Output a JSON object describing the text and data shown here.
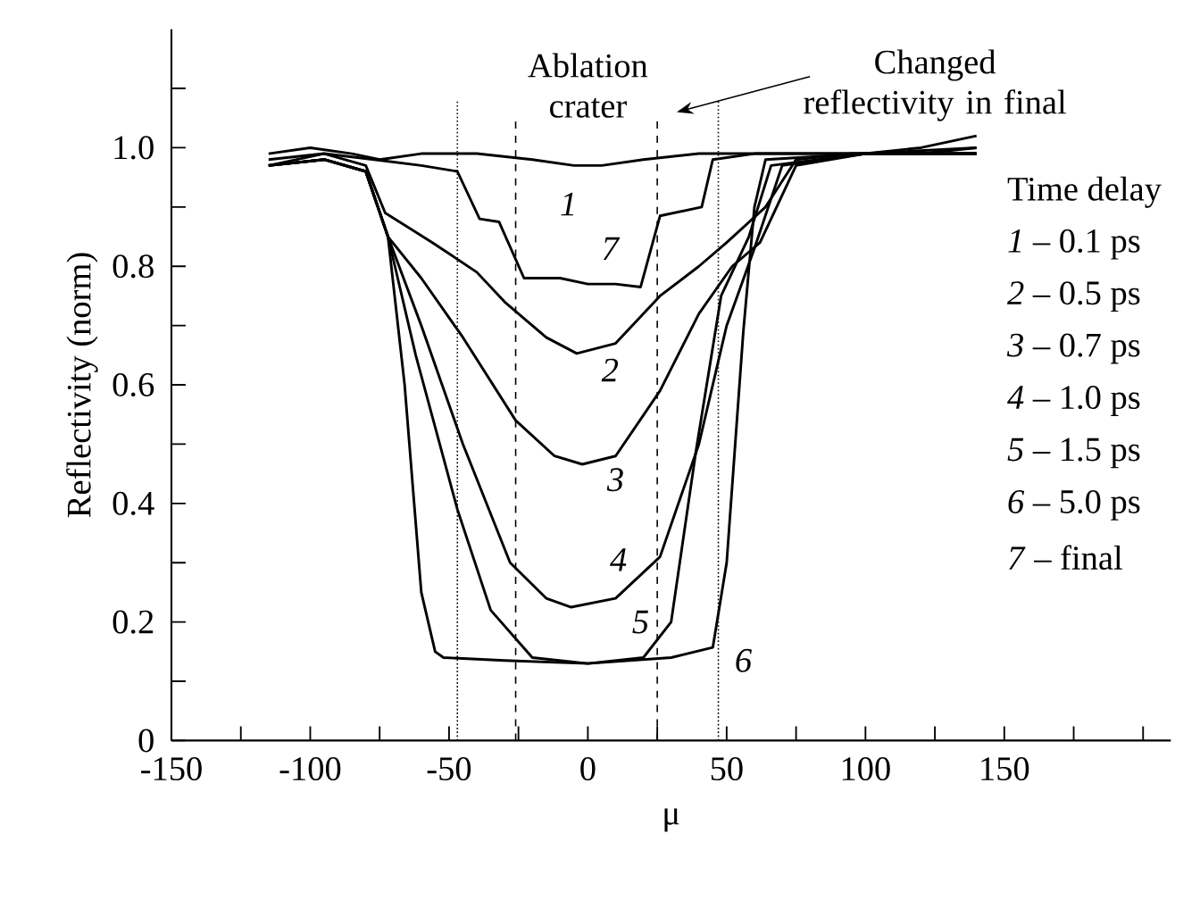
{
  "chart_data": {
    "type": "line",
    "xlabel": "μ",
    "ylabel": "Reflectivity  (norm)",
    "xlim": [
      -150,
      210
    ],
    "ylim": [
      0,
      1.2
    ],
    "xticks": [
      -150,
      {
        "value": -125,
        "label": null
      },
      -100,
      {
        "value": -75,
        "label": null
      },
      -50,
      {
        "value": -25,
        "label": null
      },
      0,
      {
        "value": 25,
        "label": null
      },
      50,
      {
        "value": 75,
        "label": null
      },
      100,
      {
        "value": 125,
        "label": null
      },
      150,
      {
        "value": 175,
        "label": null
      },
      {
        "value": 200,
        "label": null
      }
    ],
    "yticks": [
      0,
      {
        "value": 0.1,
        "label": null
      },
      0.2,
      {
        "value": 0.3,
        "label": null
      },
      0.4,
      {
        "value": 0.5,
        "label": null
      },
      0.6,
      {
        "value": 0.7,
        "label": null
      },
      0.8,
      {
        "value": 0.9,
        "label": null
      },
      {
        "value": 1.0,
        "label": "1.0"
      },
      {
        "value": 1.1,
        "label": null
      }
    ],
    "grid": false,
    "legend": false,
    "marker": "none",
    "line_style": "solid",
    "series": [
      {
        "name": "1",
        "color": "#000000",
        "x": [
          -115,
          -100,
          -85,
          -75,
          -60,
          -40,
          -20,
          -5,
          5,
          20,
          40,
          60,
          80,
          100,
          120,
          140
        ],
        "values": [
          0.99,
          1.0,
          0.99,
          0.98,
          0.99,
          0.99,
          0.98,
          0.97,
          0.97,
          0.98,
          0.99,
          0.99,
          0.99,
          0.99,
          1.0,
          1.02
        ]
      },
      {
        "name": "2",
        "color": "#000000",
        "x": [
          -115,
          -95,
          -80,
          -73,
          -56,
          -40,
          -30,
          -15,
          -4,
          10,
          26,
          40,
          50,
          64,
          75,
          95,
          120,
          140
        ],
        "values": [
          0.97,
          0.99,
          0.97,
          0.89,
          0.84,
          0.79,
          0.74,
          0.68,
          0.653,
          0.67,
          0.75,
          0.8,
          0.84,
          0.9,
          0.98,
          0.99,
          0.99,
          1.0
        ]
      },
      {
        "name": "3",
        "color": "#000000",
        "x": [
          -115,
          -95,
          -80,
          -72,
          -60,
          -45,
          -26,
          -12,
          -2,
          10,
          26,
          40,
          52,
          62,
          75,
          100,
          140
        ],
        "values": [
          0.97,
          0.98,
          0.96,
          0.85,
          0.78,
          0.68,
          0.54,
          0.48,
          0.466,
          0.48,
          0.59,
          0.72,
          0.8,
          0.84,
          0.97,
          0.99,
          0.99
        ]
      },
      {
        "name": "4",
        "color": "#000000",
        "x": [
          -115,
          -95,
          -80,
          -72,
          -60,
          -45,
          -28,
          -15,
          -6,
          10,
          26,
          40,
          50,
          60,
          70,
          100,
          140
        ],
        "values": [
          0.97,
          0.98,
          0.96,
          0.85,
          0.7,
          0.5,
          0.3,
          0.24,
          0.225,
          0.24,
          0.31,
          0.5,
          0.7,
          0.83,
          0.97,
          0.99,
          0.99
        ]
      },
      {
        "name": "5",
        "color": "#000000",
        "x": [
          -115,
          -95,
          -80,
          -72,
          -62,
          -47,
          -35,
          -20,
          0,
          20,
          30,
          39,
          48,
          58,
          66,
          100,
          140
        ],
        "values": [
          0.97,
          0.98,
          0.96,
          0.85,
          0.65,
          0.39,
          0.22,
          0.14,
          0.13,
          0.14,
          0.2,
          0.49,
          0.75,
          0.85,
          0.97,
          0.99,
          0.99
        ]
      },
      {
        "name": "6",
        "color": "#000000",
        "x": [
          -115,
          -95,
          -80,
          -72,
          -66,
          -60,
          -55,
          -52,
          -30,
          0,
          30,
          45,
          50,
          56,
          60,
          64,
          100,
          140
        ],
        "values": [
          0.97,
          0.98,
          0.96,
          0.85,
          0.6,
          0.25,
          0.15,
          0.14,
          0.135,
          0.13,
          0.14,
          0.157,
          0.3,
          0.69,
          0.9,
          0.98,
          0.99,
          0.99
        ]
      },
      {
        "name": "7",
        "color": "#000000",
        "x": [
          -115,
          -95,
          -77,
          -60,
          -47,
          -39,
          -32,
          -23,
          -10,
          0,
          10,
          19,
          26,
          41,
          45,
          60,
          100,
          140
        ],
        "values": [
          0.98,
          0.99,
          0.98,
          0.97,
          0.96,
          0.88,
          0.875,
          0.78,
          0.78,
          0.77,
          0.77,
          0.765,
          0.885,
          0.9,
          0.98,
          0.99,
          0.99,
          1.0
        ]
      }
    ],
    "ref_lines": [
      {
        "axis": "x",
        "value": -47,
        "line_style": "dotted",
        "color": "#000000"
      },
      {
        "axis": "x",
        "value": -26,
        "line_style": "dashed",
        "color": "#000000"
      },
      {
        "axis": "x",
        "value": 25,
        "line_style": "dashed",
        "color": "#000000"
      },
      {
        "axis": "x",
        "value": 47,
        "line_style": "dotted",
        "color": "#000000"
      }
    ],
    "annotations": [
      "Ablation crater",
      "Changed reflectivity  in final",
      "Time delay",
      "*1* – 0.1 ps",
      "*2* – 0.5 ps",
      "*3* – 0.7 ps",
      "*4* – 1.0 ps",
      "*5* – 1.5 ps",
      "*6* – 5.0 ps",
      "*7* – final"
    ]
  }
}
